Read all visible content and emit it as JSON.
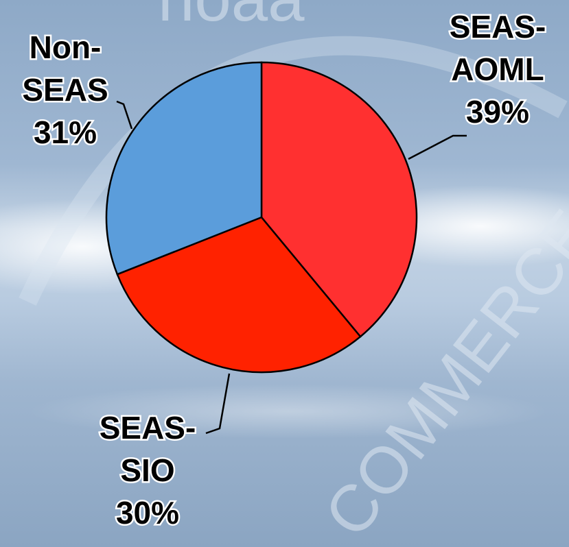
{
  "watermark": {
    "top_text": "noaa",
    "side_text": "COMMERCE"
  },
  "chart_data": {
    "type": "pie",
    "title": "",
    "start_angle_deg": 0,
    "direction": "clockwise",
    "slices": [
      {
        "label_lines": [
          "SEAS-",
          "AOML"
        ],
        "pct_text": "39%",
        "value": 39,
        "color": "#ff3030"
      },
      {
        "label_lines": [
          "SEAS-",
          "SIO"
        ],
        "pct_text": "30%",
        "value": 30,
        "color": "#ff2200"
      },
      {
        "label_lines": [
          "Non-",
          "SEAS"
        ],
        "pct_text": "31%",
        "value": 31,
        "color": "#5b9ddb"
      }
    ],
    "legend": "none",
    "label_placement": "outside-with-leaders"
  }
}
